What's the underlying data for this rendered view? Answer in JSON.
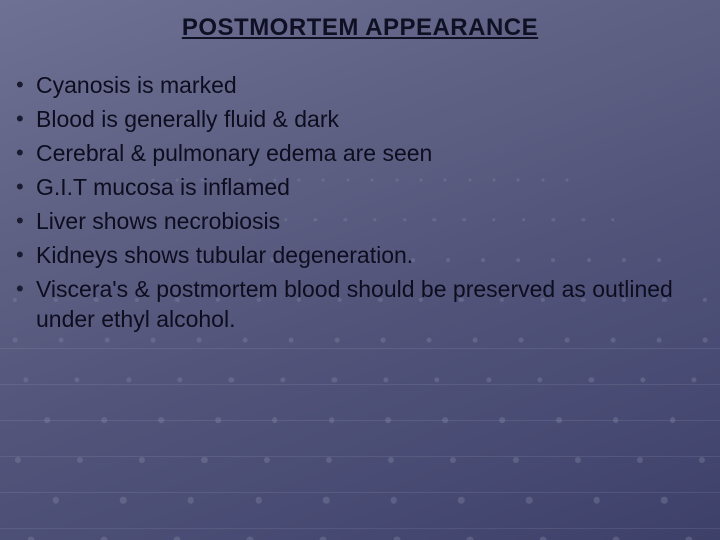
{
  "slide": {
    "title": "POSTMORTEM APPEARANCE",
    "title_fontsize": 24,
    "title_color": "#101024",
    "title_underline": true,
    "background_gradient": [
      "#6f7194",
      "#5f6184",
      "#52547a",
      "#474a72",
      "#3d4068"
    ],
    "dot_color": "#8b8dab",
    "dot_opacity": 0.35,
    "line_color": "#c8c9de",
    "line_opacity": 0.12,
    "bullet_color": "#1a1a30",
    "text_color": "#0d0d1f",
    "text_fontsize": 23,
    "bullets": [
      {
        "mark": "•",
        "text": "Cyanosis is marked",
        "indent": 0
      },
      {
        "mark": "•",
        "text": "Blood is generally fluid & dark",
        "indent": 0
      },
      {
        "mark": "•",
        "text": "Cerebral & pulmonary edema are seen",
        "indent": 0
      },
      {
        "mark": "•",
        "text": "G.I.T mucosa is inflamed",
        "indent": 0
      },
      {
        "mark": "•",
        "text": " Liver shows necrobiosis",
        "indent": 0
      },
      {
        "mark": "•",
        "text": " Kidneys shows tubular degeneration.",
        "indent": 0
      },
      {
        "mark": "•",
        "text": " Viscera's & postmortem blood should be preserved as outlined under ethyl  alcohol.",
        "indent": 0
      }
    ]
  }
}
